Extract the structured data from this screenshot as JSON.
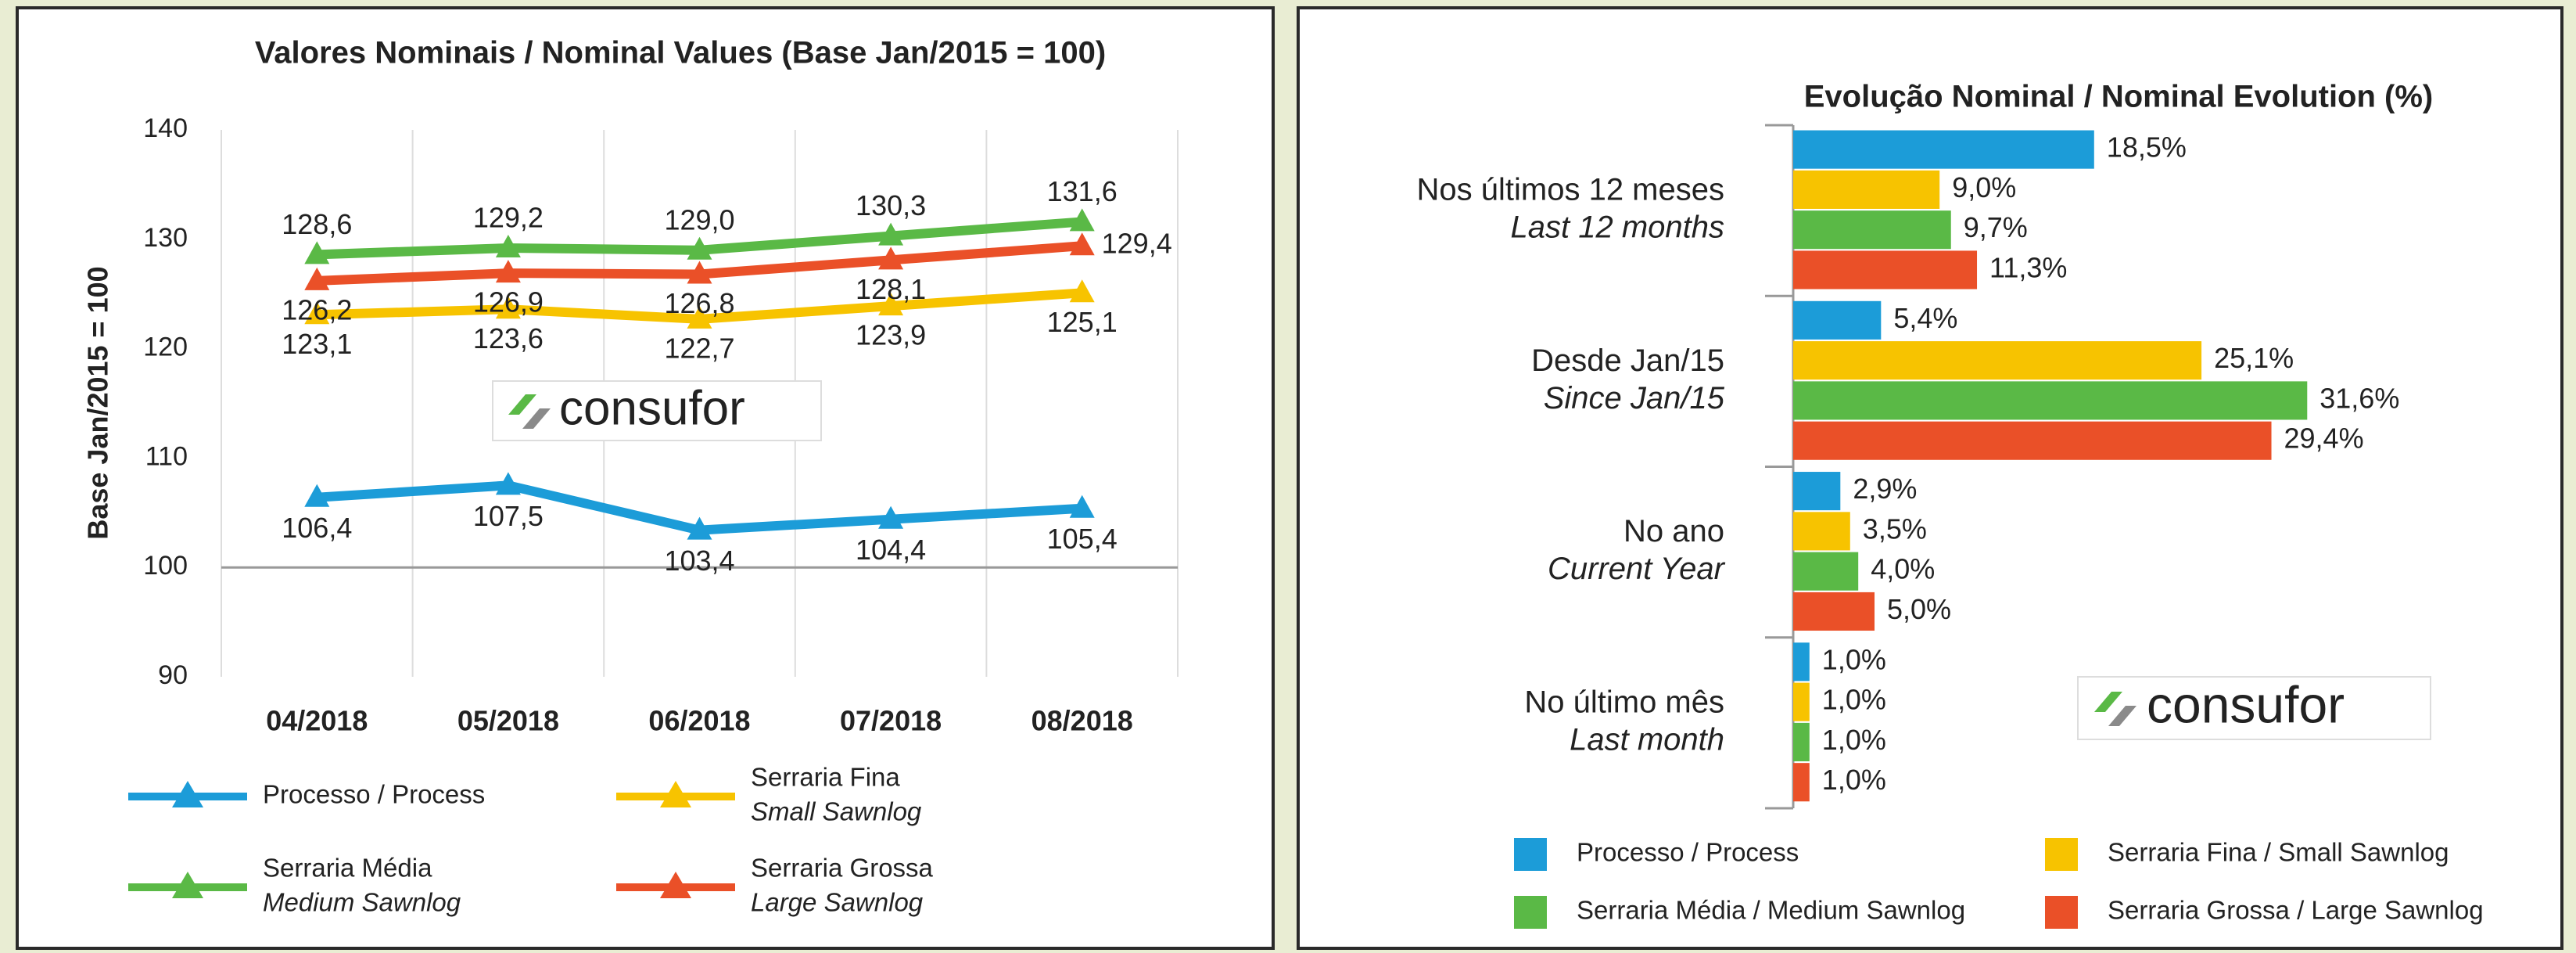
{
  "chart_data": [
    {
      "type": "line",
      "title": "Valores Nominais / Nominal Values (Base Jan/2015 = 100)",
      "y_label": "Base Jan/2015 = 100",
      "watermark": "consufor",
      "categories": [
        "04/2018",
        "05/2018",
        "06/2018",
        "07/2018",
        "08/2018"
      ],
      "ylim": [
        90,
        140
      ],
      "yticks": [
        90,
        100,
        110,
        120,
        130,
        140
      ],
      "baseline": 100,
      "series": [
        {
          "name": [
            "Processo / Process"
          ],
          "color": "#1c9cd8",
          "label_color": "#2a6db5",
          "values": [
            106.4,
            107.5,
            103.4,
            104.4,
            105.4
          ],
          "value_labels": [
            "106,4",
            "107,5",
            "103,4",
            "104,4",
            "105,4"
          ]
        },
        {
          "name": [
            "Serraria Fina",
            "Small Sawnlog"
          ],
          "color": "#f7c300",
          "label_color": "#e59a00",
          "values": [
            123.1,
            123.6,
            122.7,
            123.9,
            125.1
          ],
          "value_labels": [
            "123,1",
            "123,6",
            "122,7",
            "123,9",
            "125,1"
          ]
        },
        {
          "name": [
            "Serraria Média",
            "Medium Sawnlog"
          ],
          "color": "#5ab946",
          "label_color": "#7b8a2a",
          "values": [
            128.6,
            129.2,
            129.0,
            130.3,
            131.6
          ],
          "value_labels": [
            "128,6",
            "129,2",
            "129,0",
            "130,3",
            "131,6"
          ]
        },
        {
          "name": [
            "Serraria Grossa",
            "Large Sawnlog"
          ],
          "color": "#ea5028",
          "label_color": "#e2581c",
          "values": [
            126.2,
            126.9,
            126.8,
            128.1,
            129.4
          ],
          "value_labels": [
            "126,2",
            "126,9",
            "126,8",
            "128,1",
            "129,4"
          ]
        }
      ]
    },
    {
      "type": "hbar",
      "title": "Evolução Nominal / Nominal Evolution (%)",
      "watermark": "consufor",
      "categories": [
        [
          "Nos últimos 12 meses",
          "Last 12 months"
        ],
        [
          "Desde Jan/15",
          "Since Jan/15"
        ],
        [
          "No ano",
          "Current Year"
        ],
        [
          "No último mês",
          "Last month"
        ]
      ],
      "xlim": [
        0,
        35
      ],
      "series": [
        {
          "name": "Processo / Process",
          "color": "#1c9cd8",
          "label_color": "#2a6db5",
          "values": [
            18.5,
            5.4,
            2.9,
            1.0
          ],
          "value_labels": [
            "18,5%",
            "5,4%",
            "2,9%",
            "1,0%"
          ]
        },
        {
          "name": "Serraria Fina / Small Sawnlog",
          "color": "#f7c300",
          "label_color": "#e59a00",
          "values": [
            9.0,
            25.1,
            3.5,
            1.0
          ],
          "value_labels": [
            "9,0%",
            "25,1%",
            "3,5%",
            "1,0%"
          ]
        },
        {
          "name": "Serraria Média / Medium Sawnlog",
          "color": "#5ab946",
          "label_color": "#7b8a2a",
          "values": [
            9.7,
            31.6,
            4.0,
            1.0
          ],
          "value_labels": [
            "9,7%",
            "31,6%",
            "4,0%",
            "1,0%"
          ]
        },
        {
          "name": "Serraria Grossa / Large Sawnlog",
          "color": "#ea5028",
          "label_color": "#e2581c",
          "values": [
            11.3,
            29.4,
            5.0,
            1.0
          ],
          "value_labels": [
            "11,3%",
            "29,4%",
            "5,0%",
            "1,0%"
          ]
        }
      ]
    }
  ]
}
